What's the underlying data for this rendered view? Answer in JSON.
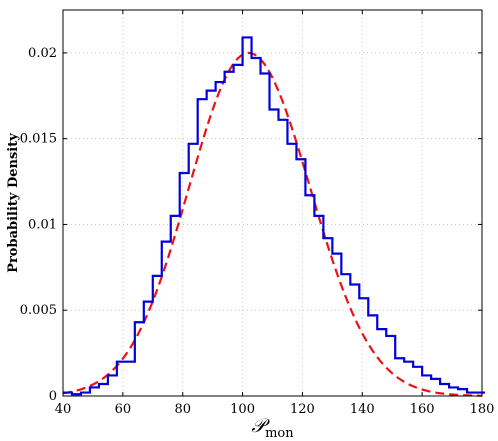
{
  "chart_data": {
    "type": "histogram+line",
    "title": "",
    "xlabel": "𝒫",
    "xlabel_subscript": "mon",
    "ylabel": "Probability Density",
    "xlim": [
      40,
      180
    ],
    "ylim": [
      0,
      0.0225
    ],
    "xticks": [
      40,
      60,
      80,
      100,
      120,
      140,
      160,
      180
    ],
    "xtick_labels": [
      "40",
      "60",
      "80",
      "100",
      "120",
      "140",
      "160",
      "180"
    ],
    "yticks": [
      0,
      0.005,
      0.01,
      0.015,
      0.02
    ],
    "ytick_labels": [
      "0",
      "0.005",
      "0.01",
      "0.015",
      "0.02"
    ],
    "grid": true,
    "series": [
      {
        "kind": "histogram",
        "color": "#0000dd",
        "bin_width": 3,
        "bin_edges_start": 40,
        "values": [
          0.0002,
          0.0001,
          0.0002,
          0.0005,
          0.0007,
          0.0012,
          0.002,
          0.002,
          0.0043,
          0.0055,
          0.007,
          0.009,
          0.0105,
          0.013,
          0.0147,
          0.0173,
          0.0178,
          0.0183,
          0.0189,
          0.0193,
          0.0209,
          0.0197,
          0.0188,
          0.0167,
          0.0161,
          0.0147,
          0.0138,
          0.0117,
          0.0105,
          0.0092,
          0.0083,
          0.0071,
          0.0065,
          0.0057,
          0.0047,
          0.0039,
          0.0035,
          0.0022,
          0.002,
          0.0017,
          0.0012,
          0.001,
          0.0007,
          0.0005,
          0.0004,
          0.0002,
          0.0002
        ]
      },
      {
        "kind": "fit",
        "style": "dashed",
        "color": "#ee1111",
        "mean": 102,
        "sd": 19.95,
        "skew_right_sd": 20.6
      }
    ]
  }
}
